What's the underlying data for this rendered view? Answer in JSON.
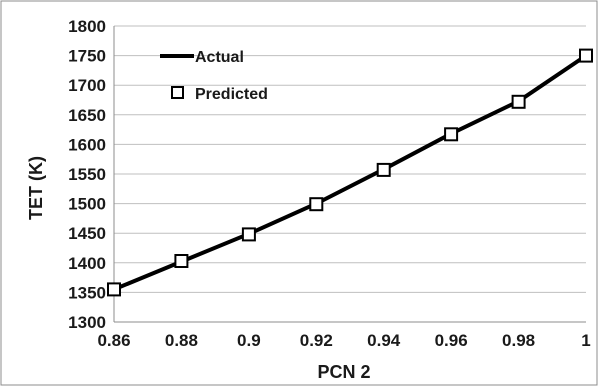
{
  "chart_data": {
    "type": "line",
    "xlabel": "PCN 2",
    "ylabel": "TET (K)",
    "xlim": [
      0.86,
      1.0
    ],
    "ylim": [
      1300,
      1800
    ],
    "x_ticks": [
      "0.86",
      "0.88",
      "0.9",
      "0.92",
      "0.94",
      "0.96",
      "0.98",
      "1"
    ],
    "y_ticks": [
      "1300",
      "1350",
      "1400",
      "1450",
      "1500",
      "1550",
      "1600",
      "1650",
      "1700",
      "1750",
      "1800"
    ],
    "grid": "horizontal",
    "legend_position": "top-left",
    "series": [
      {
        "name": "Actual",
        "style": "line",
        "color": "#000000",
        "x": [
          0.86,
          0.88,
          0.9,
          0.92,
          0.94,
          0.96,
          0.98,
          1.0
        ],
        "y": [
          1355,
          1402,
          1449,
          1500,
          1558,
          1618,
          1673,
          1750
        ]
      },
      {
        "name": "Predicted",
        "style": "square-marker",
        "color": "#000000",
        "x": [
          0.86,
          0.88,
          0.9,
          0.92,
          0.94,
          0.96,
          0.98,
          1.0
        ],
        "y": [
          1355,
          1403,
          1448,
          1499,
          1557,
          1617,
          1672,
          1750
        ]
      }
    ]
  }
}
